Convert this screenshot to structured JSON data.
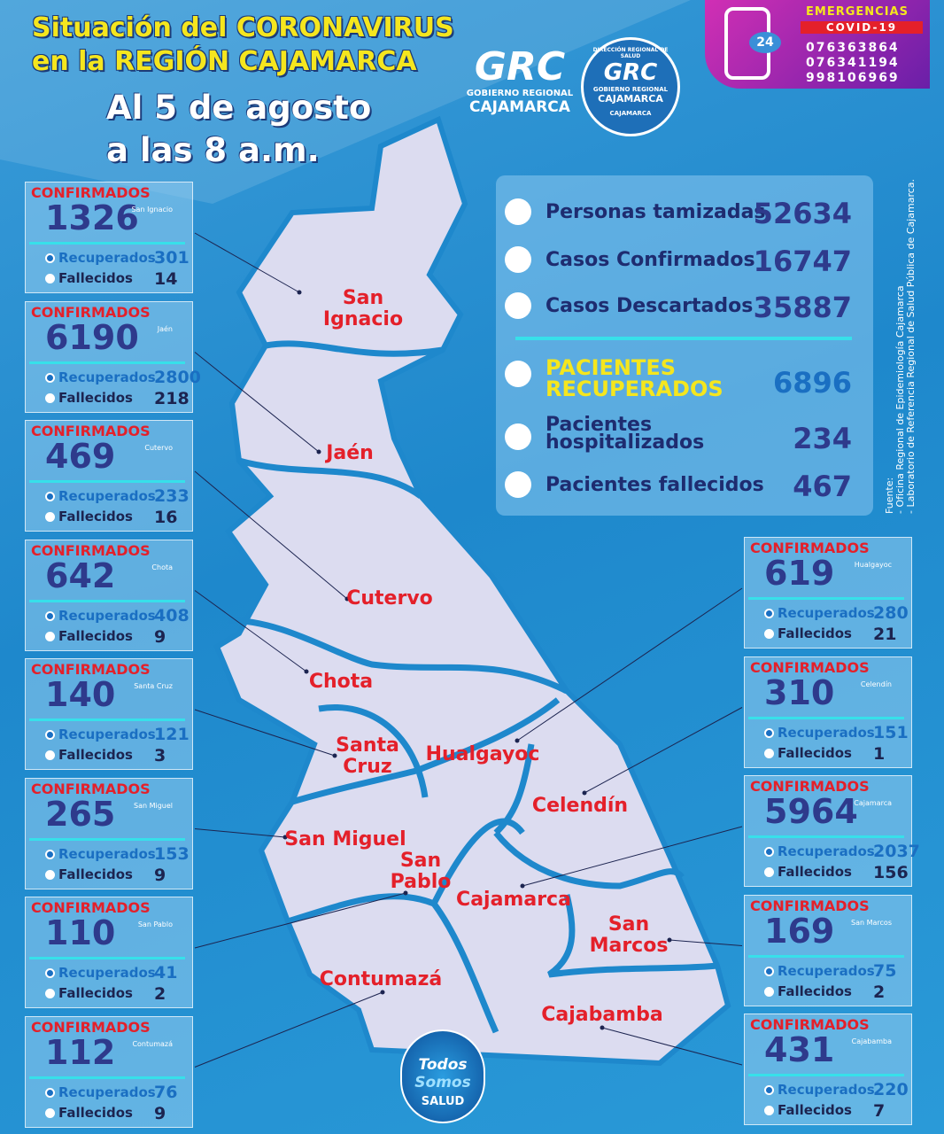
{
  "header": {
    "title_line1": "Situación del CORONAVIRUS",
    "title_line2": "en la REGIÓN CAJAMARCA",
    "date_line1": "Al 5 de agosto",
    "date_line2": "a las 8 a.m."
  },
  "emergency": {
    "title": "EMERGENCIAS",
    "subtitle": "COVID-19",
    "icon": "24",
    "phones": [
      "076363864",
      "076341194",
      "998106969"
    ]
  },
  "logos": {
    "grc": "GRC",
    "grc_line1": "GOBIERNO REGIONAL",
    "grc_line2": "CAJAMARCA",
    "dir_ring": "DIRECCIÓN REGIONAL DE SALUD",
    "dir_bottom": "CAJAMARCA"
  },
  "summary": [
    {
      "label": "Personas tamizadas",
      "value": 52634
    },
    {
      "label": "Casos Confirmados",
      "value": 16747
    },
    {
      "label": "Casos Descartados",
      "value": 35887
    },
    {
      "label": "PACIENTES RECUPERADOS",
      "value": 6896
    },
    {
      "label": "Pacientes hospitalizados",
      "value": 234
    },
    {
      "label": "Pacientes fallecidos",
      "value": 467
    }
  ],
  "source": {
    "title": "Fuente:",
    "lines": [
      "- Oficina Regional de Epidemiología Cajamarca",
      "- Laboratorio de Referencia Regional de Salud Pública de Cajamarca."
    ]
  },
  "card_labels": {
    "confirmed": "CONFIRMADOS",
    "recovered": "Recuperados",
    "deceased": "Fallecidos"
  },
  "provinces": [
    {
      "name": "San Ignacio",
      "confirmed": 1326,
      "recovered": 301,
      "deceased": 14
    },
    {
      "name": "Jaén",
      "confirmed": 6190,
      "recovered": 2800,
      "deceased": 218
    },
    {
      "name": "Cutervo",
      "confirmed": 469,
      "recovered": 233,
      "deceased": 16
    },
    {
      "name": "Chota",
      "confirmed": 642,
      "recovered": 408,
      "deceased": 9
    },
    {
      "name": "Santa Cruz",
      "confirmed": 140,
      "recovered": 121,
      "deceased": 3
    },
    {
      "name": "San Miguel",
      "confirmed": 265,
      "recovered": 153,
      "deceased": 9
    },
    {
      "name": "San Pablo",
      "confirmed": 110,
      "recovered": 41,
      "deceased": 2
    },
    {
      "name": "Contumazá",
      "confirmed": 112,
      "recovered": 76,
      "deceased": 9
    },
    {
      "name": "Hualgayoc",
      "confirmed": 619,
      "recovered": 280,
      "deceased": 21
    },
    {
      "name": "Celendín",
      "confirmed": 310,
      "recovered": 151,
      "deceased": 1
    },
    {
      "name": "Cajamarca",
      "confirmed": 5964,
      "recovered": 2037,
      "deceased": 156
    },
    {
      "name": "San Marcos",
      "confirmed": 169,
      "recovered": 75,
      "deceased": 2
    },
    {
      "name": "Cajabamba",
      "confirmed": 431,
      "recovered": 220,
      "deceased": 7
    }
  ],
  "badge": {
    "line1": "Todos",
    "line2": "Somos",
    "line3": "SALUD"
  }
}
